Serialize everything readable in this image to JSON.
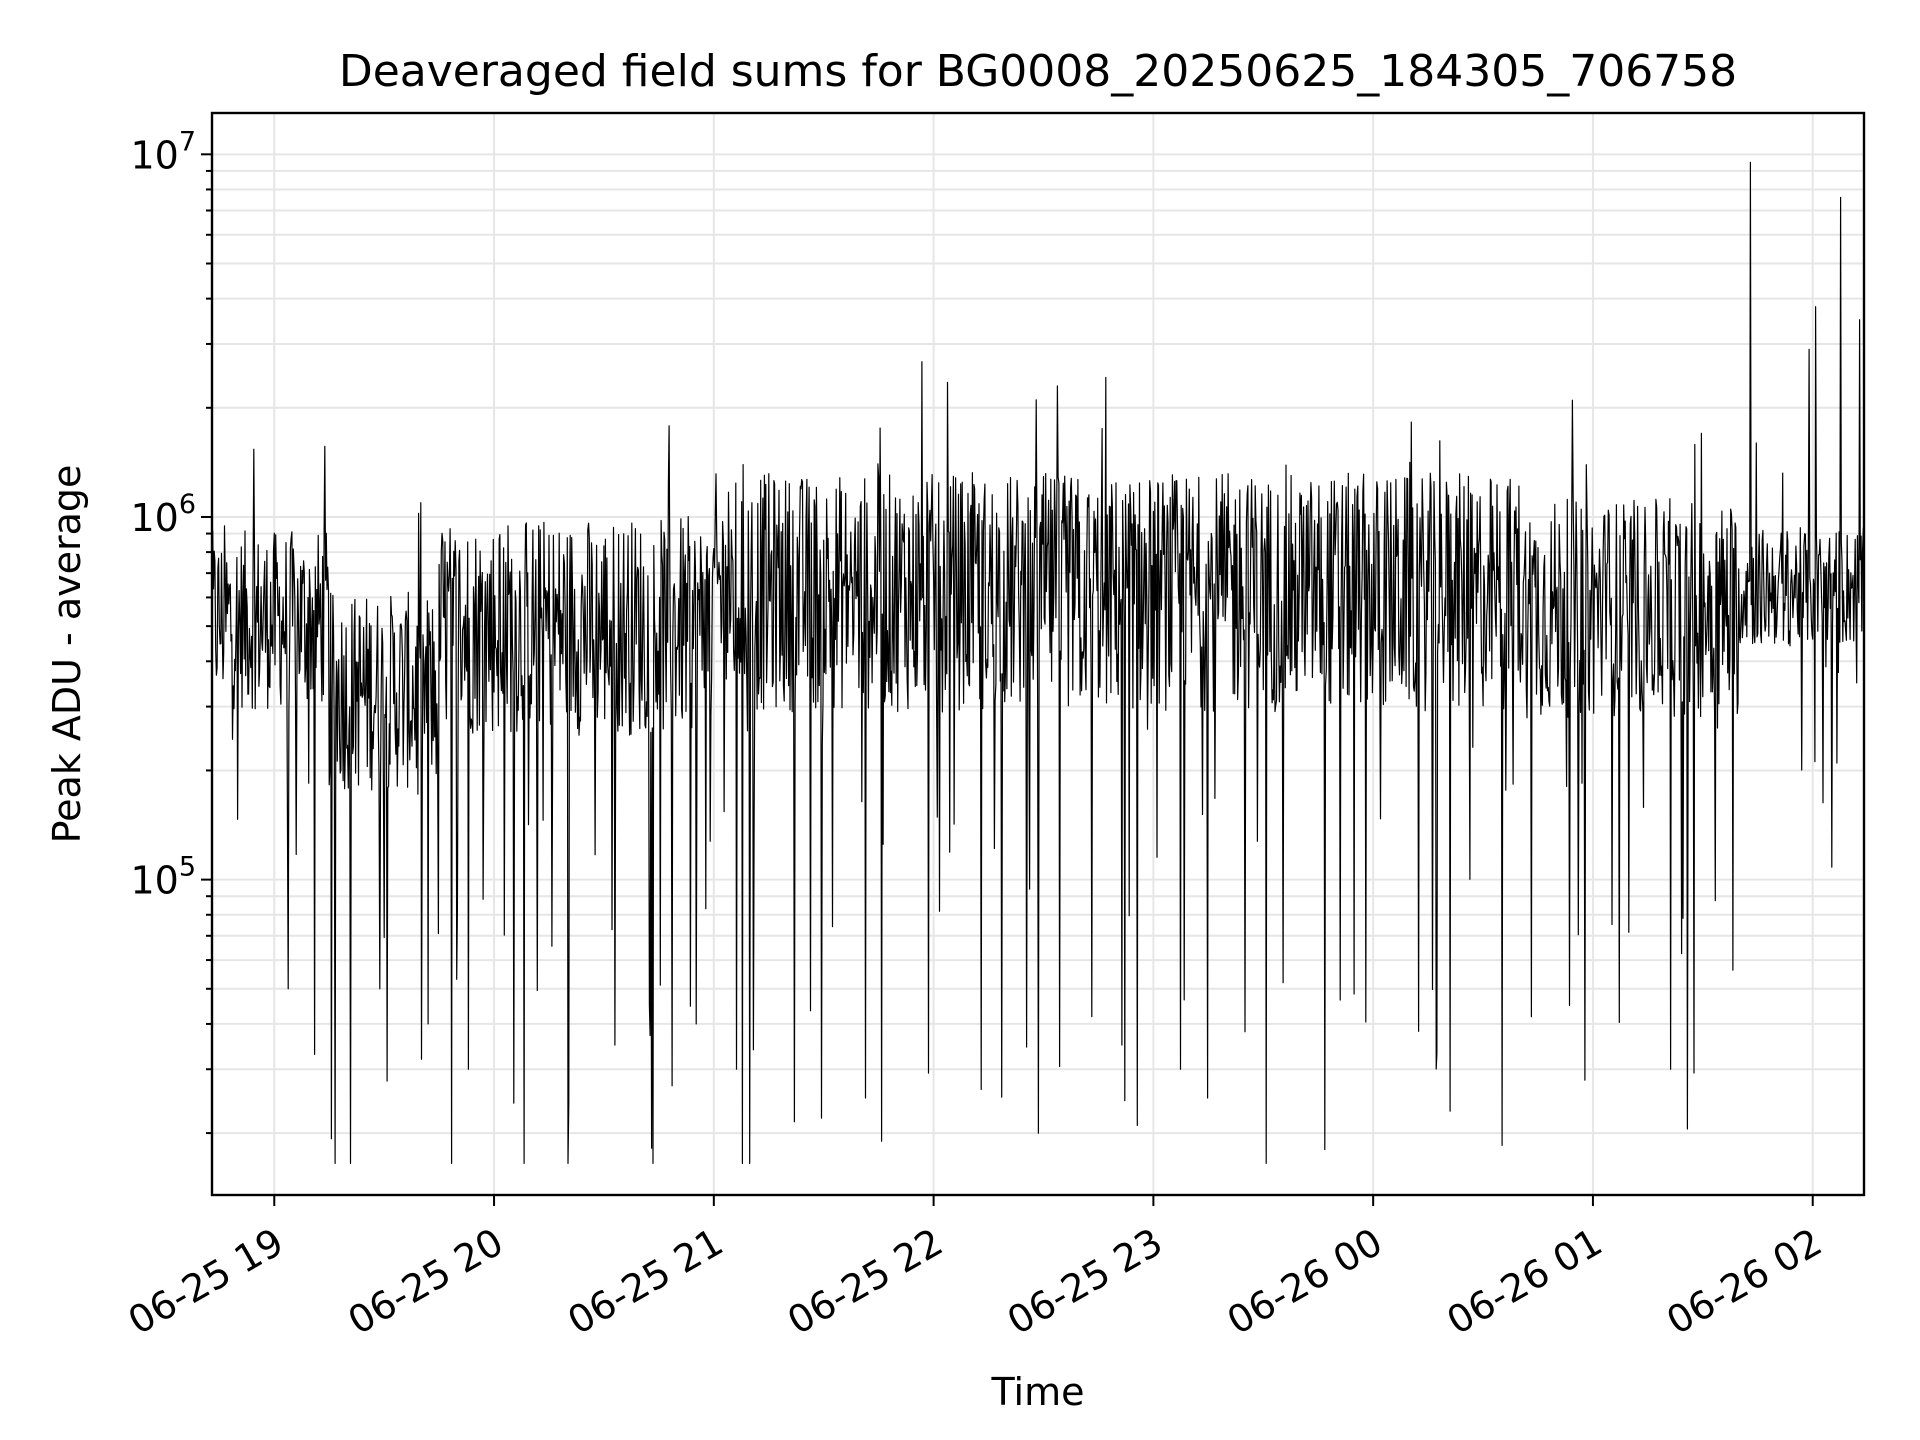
{
  "chart_data": {
    "type": "line",
    "title": "Deaveraged field sums for BG0008_20250625_184305_706758",
    "xlabel": "Time",
    "ylabel": "Peak ADU - average",
    "yscale": "log",
    "grid": true,
    "xlim": [
      "2025-06-25 18:43",
      "2025-06-26 02:14"
    ],
    "ylim": [
      13500,
      13000000
    ],
    "x_ticks": [
      "06-25 19",
      "06-25 20",
      "06-25 21",
      "06-25 22",
      "06-25 23",
      "06-26 00",
      "06-26 01",
      "06-26 02"
    ],
    "y_ticks": [
      {
        "base": "10",
        "exp": "5",
        "value": 100000
      },
      {
        "base": "10",
        "exp": "6",
        "value": 1000000
      },
      {
        "base": "10",
        "exp": "7",
        "value": 10000000
      }
    ],
    "series": [
      {
        "color": "#000000",
        "segments": [
          {
            "start": "2025-06-25 18:43",
            "end": "2025-06-25 19:15",
            "base": 520000,
            "spread": 0.9,
            "low_spikes": [
              50000
            ]
          },
          {
            "start": "2025-06-25 19:15",
            "end": "2025-06-25 19:45",
            "base": 330000,
            "spread": 1.0,
            "low_spikes": [
              40000,
              50000
            ]
          },
          {
            "start": "2025-06-25 19:45",
            "end": "2025-06-25 21:00",
            "base": 500000,
            "spread": 1.1,
            "low_spikes": [
              27000,
              30000,
              35000,
              40000,
              45000
            ]
          },
          {
            "start": "2025-06-25 21:00",
            "end": "2025-06-25 22:30",
            "base": 620000,
            "spread": 1.2,
            "low_spikes": [
              16500,
              19000,
              20000,
              22000,
              25000,
              30000
            ]
          },
          {
            "start": "2025-06-25 22:30",
            "end": "2025-06-26 00:40",
            "base": 620000,
            "spread": 1.2,
            "low_spikes": [
              18500,
              21000,
              23000,
              25000,
              30000,
              35000
            ]
          },
          {
            "start": "2025-06-26 00:40",
            "end": "2025-06-26 01:40",
            "base": 560000,
            "spread": 1.1,
            "low_spikes": [
              28000,
              30000,
              40000,
              45000
            ]
          },
          {
            "start": "2025-06-26 01:40",
            "end": "2025-06-26 02:14",
            "base": 640000,
            "spread": 0.6,
            "high_spikes": [
              9500000,
              7600000,
              3800000,
              3500000,
              2900000
            ]
          }
        ],
        "max": 9500000,
        "min": 16500
      }
    ]
  }
}
